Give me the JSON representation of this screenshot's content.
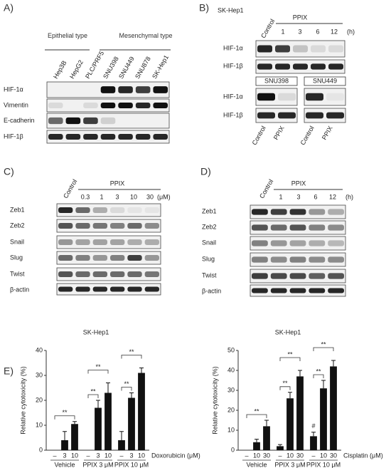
{
  "panel_a": {
    "label": "A)",
    "groups": [
      "Epithelial type",
      "Mesenchymal type"
    ],
    "lanes": [
      "Hep3B",
      "HepG2",
      "PLC/PRF5",
      "SNU398",
      "SNU449",
      "SNU878",
      "SK-Hep1"
    ],
    "rows": [
      "HIF-1α",
      "Vimentin",
      "E-cadherin",
      "HIF-1β"
    ]
  },
  "panel_b": {
    "label": "B)",
    "cell_line": "SK-Hep1",
    "control": "Control",
    "treatment": "PPIX",
    "times": [
      "1",
      "3",
      "6",
      "12"
    ],
    "unit": "(h)",
    "rows": [
      "HIF-1α",
      "HIF-1β"
    ],
    "lines": [
      "SNU398",
      "SNU449"
    ],
    "bottom_rows": [
      "HIF-1α",
      "HIF-1β"
    ],
    "bottom_lanes": [
      "Control",
      "PPIX",
      "Control",
      "PPIX"
    ]
  },
  "panel_c": {
    "label": "C)",
    "control": "Control",
    "treatment": "PPIX",
    "doses": [
      "0.3",
      "1",
      "3",
      "10",
      "30"
    ],
    "unit": "(μM)",
    "rows": [
      "Zeb1",
      "Zeb2",
      "Snail",
      "Slug",
      "Twist",
      "β-actin"
    ]
  },
  "panel_d": {
    "label": "D)",
    "control": "Control",
    "treatment": "PPIX",
    "times": [
      "1",
      "3",
      "6",
      "12"
    ],
    "unit": "(h)",
    "rows": [
      "Zeb1",
      "Zeb2",
      "Snail",
      "Slug",
      "Twist",
      "β-actin"
    ]
  },
  "panel_e": {
    "label": "E)"
  },
  "chart_data": [
    {
      "type": "bar",
      "title": "SK-Hep1",
      "ylabel": "Relative cytotoxicity (%)",
      "xlabel": "Doxorubicin (μM)",
      "groups": [
        "Vehicle",
        "PPIX 3 μM",
        "PPIX 10 μM"
      ],
      "categories": [
        "–",
        "3",
        "10",
        "–",
        "3",
        "10",
        "–",
        "3",
        "10"
      ],
      "values": [
        0,
        4,
        10.5,
        0,
        17,
        23,
        4,
        21,
        31
      ],
      "errors": [
        0,
        3.5,
        1,
        0,
        3,
        4,
        3.5,
        2,
        2
      ],
      "color": "#111111",
      "ylim": [
        0,
        40
      ],
      "yticks": [
        0,
        10,
        20,
        30,
        40
      ],
      "annotations": [
        "**",
        "**",
        "**",
        "**",
        "**"
      ]
    },
    {
      "type": "bar",
      "title": "SK-Hep1",
      "ylabel": "Relative cytotoxicity (%)",
      "xlabel": "Cisplatin (μM)",
      "groups": [
        "Vehicle",
        "PPIX 3 μM",
        "PPIX 10 μM"
      ],
      "categories": [
        "–",
        "10",
        "30",
        "–",
        "10",
        "30",
        "–",
        "10",
        "30"
      ],
      "values": [
        0,
        4,
        12,
        2,
        26,
        37,
        7,
        31,
        42
      ],
      "errors": [
        0,
        1.5,
        3,
        0.8,
        3,
        3,
        2,
        4,
        3
      ],
      "color": "#111111",
      "ylim": [
        0,
        50
      ],
      "yticks": [
        0,
        10,
        20,
        30,
        40,
        50
      ],
      "annotations": [
        "**",
        "**",
        "**",
        "**",
        "**",
        "#"
      ]
    }
  ]
}
